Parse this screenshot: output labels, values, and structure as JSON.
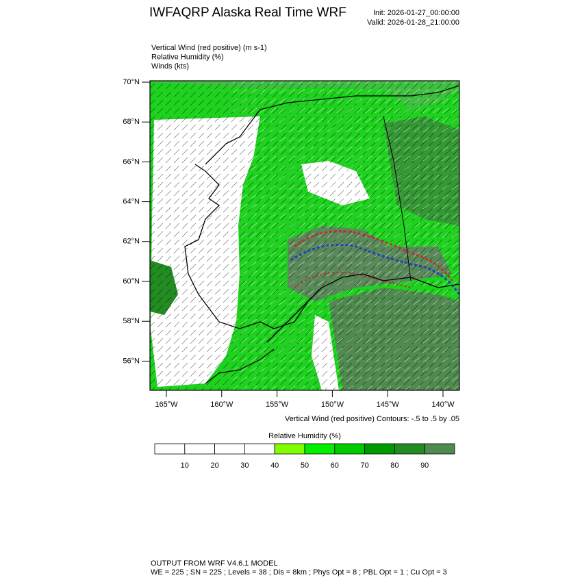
{
  "header": {
    "title": "IWFAQRP Alaska Real Time WRF",
    "init": "Init: 2026-01-27_00:00:00",
    "valid": "Valid: 2026-01-28_21:00:00"
  },
  "fields": [
    "Vertical Wind (red positive)   (m s-1)",
    "Relative Humidity   (%)",
    "Winds   (kts)"
  ],
  "map": {
    "lat_labels": [
      "70°N",
      "68°N",
      "66°N",
      "64°N",
      "62°N",
      "60°N",
      "58°N",
      "56°N"
    ],
    "lon_labels": [
      "165°W",
      "160°W",
      "155°W",
      "150°W",
      "145°W",
      "140°W"
    ],
    "contour_note": "Vertical Wind (red positive) Contours: -.5 to .5 by .05"
  },
  "colorbar": {
    "title": "Relative Humidity  (%)",
    "colors": [
      "#ffffff",
      "#ffffff",
      "#ffffff",
      "#ffffff",
      "#80ff00",
      "#00f000",
      "#00cc00",
      "#009900",
      "#228b22",
      "#4f8a4f"
    ],
    "labels": [
      "10",
      "20",
      "30",
      "40",
      "50",
      "60",
      "70",
      "80",
      "90"
    ]
  },
  "footer": {
    "line1": "OUTPUT FROM WRF V4.6.1 MODEL",
    "line2": "WE = 225 ; SN = 225 ; Levels = 38 ; Dis = 8km ; Phys Opt = 8 ; PBL Opt = 1 ; Cu Opt = 3"
  }
}
